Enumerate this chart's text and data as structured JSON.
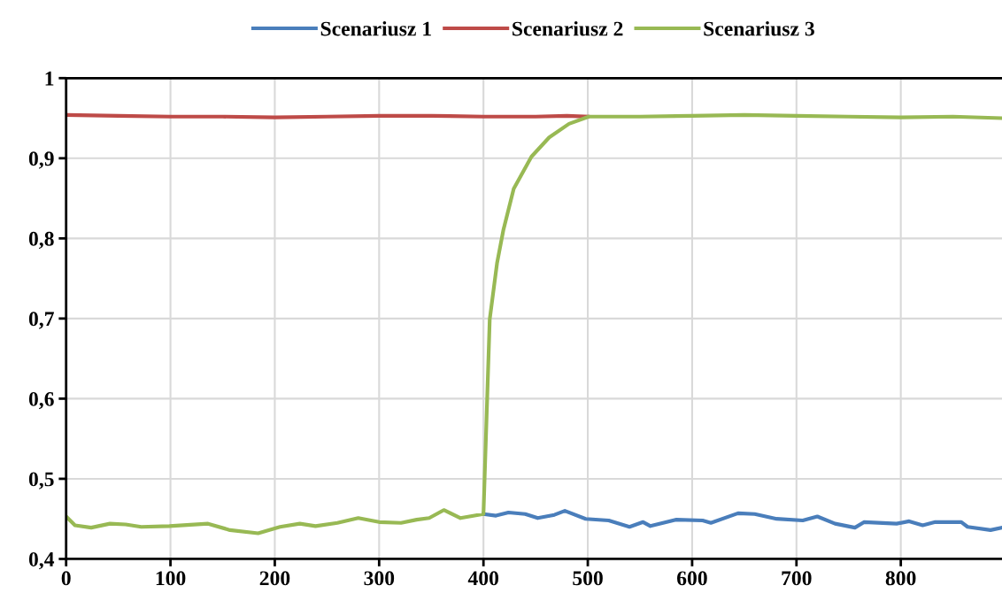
{
  "chart_data": {
    "type": "line",
    "legend": "top",
    "grid": true,
    "line_style": "solid",
    "marker": "none",
    "xlim": [
      0,
      897
    ],
    "xticks": [
      0,
      100,
      200,
      300,
      400,
      500,
      600,
      700,
      800
    ],
    "ylim": [
      0.4,
      1
    ],
    "yticks": [
      {
        "value": 0.4,
        "label": "0,4"
      },
      {
        "value": 0.5,
        "label": "0,5"
      },
      {
        "value": 0.6,
        "label": "0,6"
      },
      {
        "value": 0.7,
        "label": "0,7"
      },
      {
        "value": 0.8,
        "label": "0,8"
      },
      {
        "value": 0.9,
        "label": "0,9"
      },
      {
        "value": 1,
        "label": "1"
      }
    ],
    "series": [
      {
        "name": "Scenariusz 1",
        "color": "#4a7ebb",
        "x": [
          400,
          412,
          424,
          440,
          452,
          468,
          478,
          498,
          520,
          540,
          553,
          560,
          585,
          610,
          618,
          644,
          660,
          681,
          706,
          720,
          737,
          756,
          765,
          796,
          808,
          821,
          833,
          858,
          864,
          886,
          897
        ],
        "values": [
          0.456,
          0.454,
          0.458,
          0.456,
          0.451,
          0.455,
          0.46,
          0.45,
          0.448,
          0.44,
          0.446,
          0.441,
          0.449,
          0.448,
          0.445,
          0.457,
          0.456,
          0.45,
          0.448,
          0.453,
          0.444,
          0.439,
          0.446,
          0.444,
          0.447,
          0.442,
          0.446,
          0.446,
          0.44,
          0.436,
          0.439
        ]
      },
      {
        "name": "Scenariusz 2",
        "color": "#be4b48",
        "x": [
          0,
          50,
          100,
          150,
          200,
          250,
          300,
          350,
          400,
          450,
          480,
          500
        ],
        "values": [
          0.954,
          0.953,
          0.952,
          0.952,
          0.951,
          0.952,
          0.953,
          0.953,
          0.952,
          0.952,
          0.953,
          0.952
        ]
      },
      {
        "name": "Scenariusz 3",
        "color": "#98b954",
        "x": [
          0,
          8.5,
          24,
          42,
          57,
          72,
          99,
          136,
          157,
          184,
          205,
          224,
          239,
          260,
          280,
          300,
          321,
          336,
          348,
          362,
          378,
          400,
          402,
          406,
          413,
          419,
          429,
          446,
          463,
          482,
          501,
          550,
          600,
          650,
          700,
          750,
          800,
          850,
          897
        ],
        "values": [
          0.453,
          0.442,
          0.439,
          0.444,
          0.443,
          0.44,
          0.441,
          0.444,
          0.436,
          0.432,
          0.44,
          0.444,
          0.441,
          0.445,
          0.451,
          0.446,
          0.445,
          0.449,
          0.451,
          0.461,
          0.451,
          0.456,
          0.537,
          0.699,
          0.769,
          0.81,
          0.862,
          0.902,
          0.926,
          0.943,
          0.952,
          0.952,
          0.953,
          0.954,
          0.953,
          0.952,
          0.951,
          0.952,
          0.95
        ]
      }
    ]
  }
}
